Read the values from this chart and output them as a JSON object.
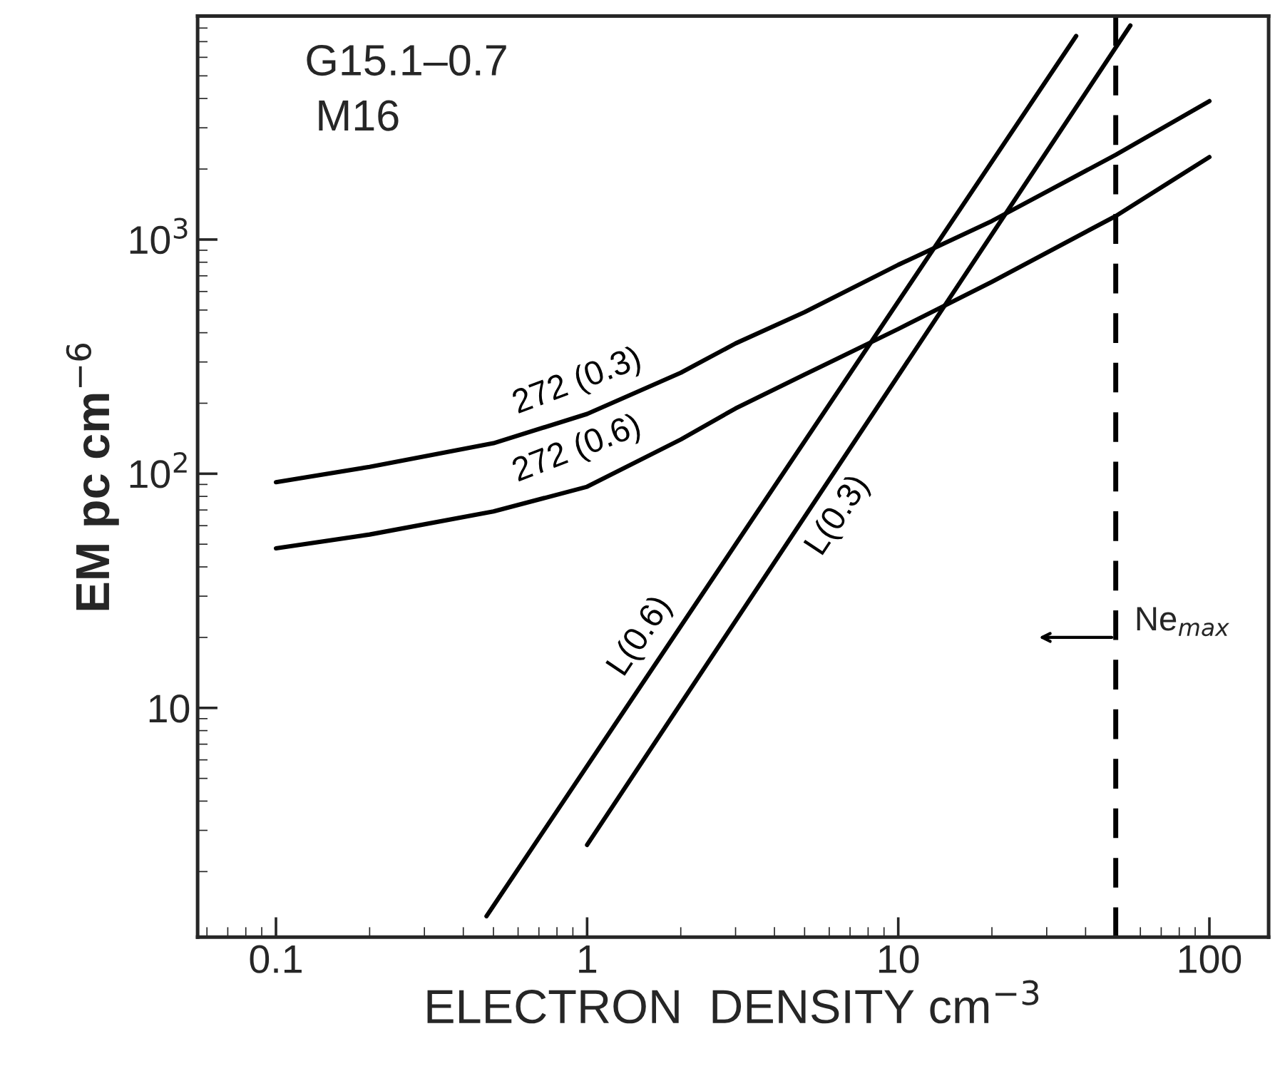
{
  "chart_data": {
    "type": "line",
    "xlabel": "ELECTRON  DENSITY cm$^{−3}$",
    "ylabel": "EM pc cm$^{−6}$",
    "log": "xy",
    "xlim": [
      0.056,
      155
    ],
    "ylim": [
      1.05,
      9000
    ],
    "xticks": [
      0.1,
      1,
      10,
      100
    ],
    "yticks": [
      10,
      {
        "value": 100,
        "label": "10$^{2}$"
      },
      {
        "value": 1000,
        "label": "10$^{3}$"
      }
    ],
    "grid": false,
    "legend": false,
    "marker": "none",
    "line_style": "solid",
    "series": [
      {
        "name": "272 (0.3)",
        "color": "#000000",
        "x": [
          0.1,
          0.2,
          0.5,
          1,
          2,
          3,
          5,
          10,
          20,
          50,
          100
        ],
        "values": [
          92,
          107,
          135,
          180,
          270,
          360,
          490,
          780,
          1200,
          2300,
          3900
        ]
      },
      {
        "name": "272 (0.6)",
        "color": "#000000",
        "x": [
          0.1,
          0.2,
          0.5,
          1,
          2,
          3,
          5,
          10,
          20,
          50,
          100
        ],
        "values": [
          48,
          55,
          69,
          88,
          140,
          190,
          265,
          415,
          660,
          1260,
          2250
        ]
      },
      {
        "name": "L(0.6)",
        "color": "#000000",
        "x": [
          0.475,
          37.3
        ],
        "values": [
          1.29,
          7400
        ]
      },
      {
        "name": "L(0.3)",
        "color": "#000000",
        "x": [
          1.0,
          55.7
        ],
        "values": [
          2.6,
          8200
        ]
      }
    ],
    "ref_lines": [
      {
        "axis": "x",
        "value": 50,
        "label": "Ne$_{max}$",
        "color": "#000000",
        "line_style": "dashed"
      }
    ],
    "annotations": [
      "G15.1–0.7",
      "M16"
    ]
  }
}
